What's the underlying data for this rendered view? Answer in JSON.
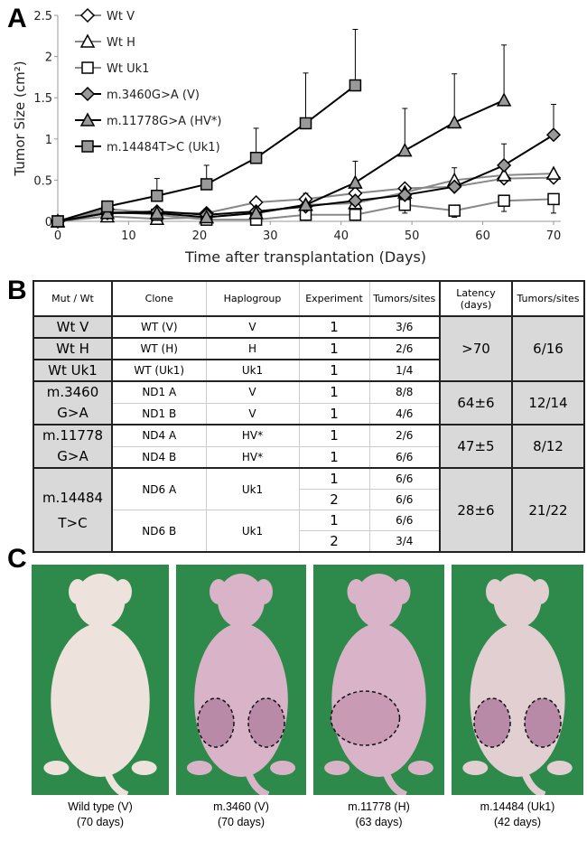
{
  "panels": {
    "a": "A",
    "b": "B",
    "c": "C"
  },
  "chart_data": {
    "type": "line",
    "xlabel": "Time after transplantation (Days)",
    "ylabel": "Tumor Size (cm²)",
    "xlim": [
      0,
      70
    ],
    "ylim": [
      0,
      2.5
    ],
    "xticks": [
      "0",
      "10",
      "20",
      "30",
      "40",
      "50",
      "60",
      "70"
    ],
    "yticks": [
      "0",
      "0.5",
      "1",
      "1.5",
      "2",
      "2.5"
    ],
    "legend_position": "top-left",
    "grid": false,
    "x": [
      0,
      7,
      14,
      21,
      28,
      35,
      42,
      49,
      56,
      63,
      70
    ],
    "series": [
      {
        "name": "Wt V",
        "marker": "diamond",
        "fill": "#ffffff",
        "line": "#888888",
        "values": [
          0,
          0.15,
          0.1,
          0.1,
          0.23,
          0.27,
          0.34,
          0.4,
          0.42,
          0.52,
          0.53
        ],
        "err_upper": [
          null,
          null,
          null,
          null,
          null,
          0.34,
          null,
          null,
          0.65,
          0.6,
          null
        ]
      },
      {
        "name": "Wt H",
        "marker": "triangle",
        "fill": "#ffffff",
        "line": "#888888",
        "values": [
          0,
          0.06,
          0.03,
          0.05,
          0.1,
          0.2,
          0.22,
          0.35,
          0.5,
          0.56,
          0.58
        ],
        "err_upper": [
          null,
          null,
          null,
          null,
          null,
          null,
          null,
          null,
          null,
          null,
          null
        ]
      },
      {
        "name": "Wt Uk1",
        "marker": "square",
        "fill": "#ffffff",
        "line": "#888888",
        "values": [
          0,
          0.12,
          0.08,
          0.02,
          0.02,
          0.08,
          0.08,
          0.2,
          0.13,
          0.25,
          0.27
        ],
        "err_lower": [
          null,
          null,
          null,
          null,
          null,
          null,
          null,
          0.1,
          0.05,
          0.12,
          0.1
        ]
      },
      {
        "name": "m.3460G>A (V)",
        "marker": "diamond",
        "fill": "#999999",
        "line": "#000000",
        "values": [
          0,
          0.1,
          0.12,
          0.08,
          0.12,
          0.18,
          0.25,
          0.32,
          0.42,
          0.68,
          1.05
        ],
        "err_upper": [
          null,
          null,
          null,
          null,
          null,
          null,
          null,
          null,
          null,
          0.94,
          1.42
        ]
      },
      {
        "name": "m.11778G>A (HV*)",
        "marker": "triangle",
        "fill": "#999999",
        "line": "#000000",
        "values": [
          0,
          0.1,
          0.1,
          0.05,
          0.1,
          0.2,
          0.47,
          0.86,
          1.2,
          1.47,
          null
        ],
        "err_upper": [
          null,
          null,
          null,
          null,
          null,
          null,
          0.73,
          1.37,
          1.79,
          2.14,
          null
        ]
      },
      {
        "name": "m.14484T>C (Uk1)",
        "marker": "square",
        "fill": "#999999",
        "line": "#000000",
        "values": [
          0,
          0.18,
          0.31,
          0.45,
          0.77,
          1.19,
          1.65,
          null,
          null,
          null,
          null
        ],
        "err_upper": [
          null,
          null,
          0.52,
          0.68,
          1.13,
          1.8,
          2.33,
          null,
          null,
          null,
          null
        ]
      }
    ]
  },
  "table": {
    "headers": [
      "Mut / Wt",
      "Clone",
      "Haplogroup",
      "Experiment",
      "Tumors/sites",
      "Latency (days)",
      "Tumors/sites"
    ],
    "groups": [
      {
        "label": "Wt V",
        "clone": "WT (V)",
        "hap": "V",
        "exp": "1",
        "ts": "3/6"
      },
      {
        "label": "Wt H",
        "clone": "WT (H)",
        "hap": "H",
        "exp": "1",
        "ts": "2/6"
      },
      {
        "label": "Wt Uk1",
        "clone": "WT (Uk1)",
        "hap": "Uk1",
        "exp": "1",
        "ts": "1/4"
      },
      {
        "latency": ">70",
        "total": "6/16"
      },
      {
        "label": "m.3460 G>A",
        "rows": [
          {
            "clone": "ND1 A",
            "hap": "V",
            "exp": "1",
            "ts": "8/8"
          },
          {
            "clone": "ND1 B",
            "hap": "V",
            "exp": "1",
            "ts": "4/6"
          }
        ],
        "latency": "64±6",
        "total": "12/14"
      },
      {
        "label": "m.11778 G>A",
        "rows": [
          {
            "clone": "ND4 A",
            "hap": "HV*",
            "exp": "1",
            "ts": "2/6"
          },
          {
            "clone": "ND4 B",
            "hap": "HV*",
            "exp": "1",
            "ts": "6/6"
          }
        ],
        "latency": "47±5",
        "total": "8/12"
      },
      {
        "label": "m.14484 T>C",
        "rows": [
          {
            "clone": "ND6 A",
            "hap": "Uk1",
            "exp": "1",
            "ts": "6/6"
          },
          {
            "exp": "2",
            "ts": "6/6"
          },
          {
            "clone": "ND6 B",
            "hap": "Uk1",
            "exp": "1",
            "ts": "6/6"
          },
          {
            "exp": "2",
            "ts": "3/4"
          }
        ],
        "latency": "28±6",
        "total": "21/22"
      }
    ]
  },
  "photos": [
    {
      "l1": "Wild type (V)",
      "l2": "(70 days)",
      "tumors": 0
    },
    {
      "l1": "m.3460 (V)",
      "l2": "(70 days)",
      "tumors": 2
    },
    {
      "l1": "m.11778 (H)",
      "l2": "(63 days)",
      "tumors": 1
    },
    {
      "l1": "m.14484 (Uk1)",
      "l2": "(42 days)",
      "tumors": 2
    }
  ]
}
